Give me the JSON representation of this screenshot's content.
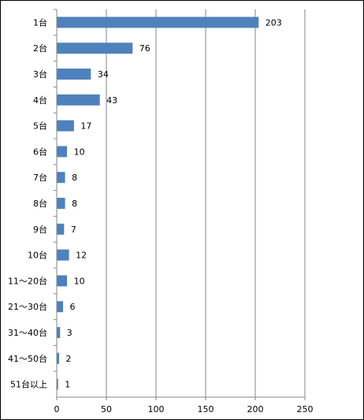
{
  "chart_data": {
    "type": "bar",
    "orientation": "horizontal",
    "categories": [
      "1台",
      "2台",
      "3台",
      "4台",
      "5台",
      "6台",
      "7台",
      "8台",
      "9台",
      "10台",
      "11〜20台",
      "21〜30台",
      "31〜40台",
      "41〜50台",
      "51台以上"
    ],
    "values": [
      203,
      76,
      34,
      43,
      17,
      10,
      8,
      8,
      7,
      12,
      10,
      6,
      3,
      2,
      1
    ],
    "title": "",
    "xlabel": "",
    "ylabel": "",
    "xlim": [
      0,
      250
    ],
    "x_ticks": [
      "0",
      "50",
      "100",
      "150",
      "200",
      "250"
    ],
    "grid": "vertical gridlines",
    "legend": "none",
    "bar_color": "#4f81bd",
    "grid_color": "#868686"
  }
}
